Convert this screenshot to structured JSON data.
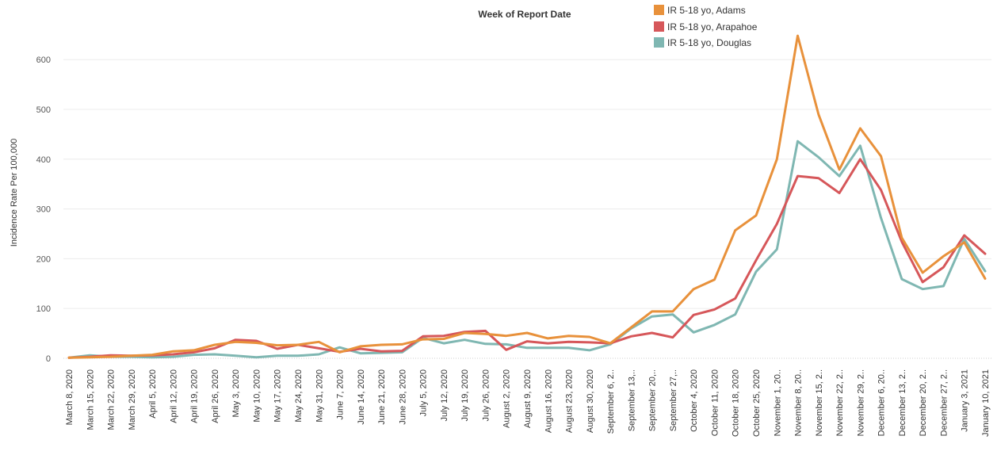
{
  "chart_data": {
    "type": "line",
    "title": "",
    "xlabel": "Week of Report Date",
    "ylabel": "Incidence Rate Per 100,000",
    "ylim": [
      -8,
      672
    ],
    "yticks": [
      0,
      100,
      200,
      300,
      400,
      500,
      600
    ],
    "ytick_labels": [
      "0",
      "100",
      "200",
      "300",
      "400",
      "500",
      "600"
    ],
    "grid": true,
    "legend_position": "top-right",
    "categories": [
      "March 8, 2020",
      "March 15, 2020",
      "March 22, 2020",
      "March 29, 2020",
      "April 5, 2020",
      "April 12, 2020",
      "April 19, 2020",
      "April 26, 2020",
      "May 3, 2020",
      "May 10, 2020",
      "May 17, 2020",
      "May 24, 2020",
      "May 31, 2020",
      "June 7, 2020",
      "June 14, 2020",
      "June 21, 2020",
      "June 28, 2020",
      "July 5, 2020",
      "July 12, 2020",
      "July 19, 2020",
      "July 26, 2020",
      "August 2, 2020",
      "August 9, 2020",
      "August 16, 2020",
      "August 23, 2020",
      "August 30, 2020",
      "September 6, 2..",
      "September 13,..",
      "September 20,..",
      "September 27,..",
      "October 4, 2020",
      "October 11, 2020",
      "October 18, 2020",
      "October 25, 2020",
      "November 1, 20..",
      "November 8, 20..",
      "November 15, 2..",
      "November 22, 2..",
      "November 29, 2..",
      "December 6, 20..",
      "December 13, 2..",
      "December 20, 2..",
      "December 27, 2..",
      "January 3, 2021",
      "January 10, 2021"
    ],
    "series": [
      {
        "name": "IR 5-18 yo, Adams",
        "color": "#e8913b",
        "values": [
          1,
          2,
          3,
          5,
          7,
          14,
          16,
          27,
          33,
          31,
          26,
          27,
          33,
          12,
          24,
          27,
          28,
          38,
          39,
          51,
          49,
          45,
          51,
          40,
          45,
          43,
          30,
          62,
          94,
          94,
          139,
          158,
          257,
          287,
          400,
          648,
          490,
          379,
          462,
          406,
          242,
          172,
          205,
          233,
          160
        ]
      },
      {
        "name": "IR 5-18 yo, Arapahoe",
        "color": "#d6575a",
        "values": [
          1,
          3,
          6,
          5,
          6,
          8,
          12,
          20,
          37,
          35,
          19,
          27,
          20,
          13,
          19,
          14,
          15,
          44,
          45,
          53,
          55,
          17,
          34,
          30,
          33,
          32,
          30,
          44,
          51,
          42,
          87,
          98,
          120,
          197,
          270,
          366,
          362,
          332,
          400,
          338,
          234,
          153,
          183,
          247,
          210
        ]
      },
      {
        "name": "IR 5-18 yo, Douglas",
        "color": "#7fb7b2",
        "values": [
          1,
          6,
          3,
          3,
          2,
          3,
          7,
          8,
          5,
          2,
          5,
          5,
          8,
          22,
          10,
          11,
          12,
          41,
          30,
          37,
          29,
          28,
          21,
          21,
          21,
          16,
          28,
          60,
          84,
          88,
          52,
          67,
          88,
          174,
          219,
          436,
          404,
          366,
          427,
          282,
          159,
          139,
          145,
          240,
          175
        ]
      }
    ]
  }
}
